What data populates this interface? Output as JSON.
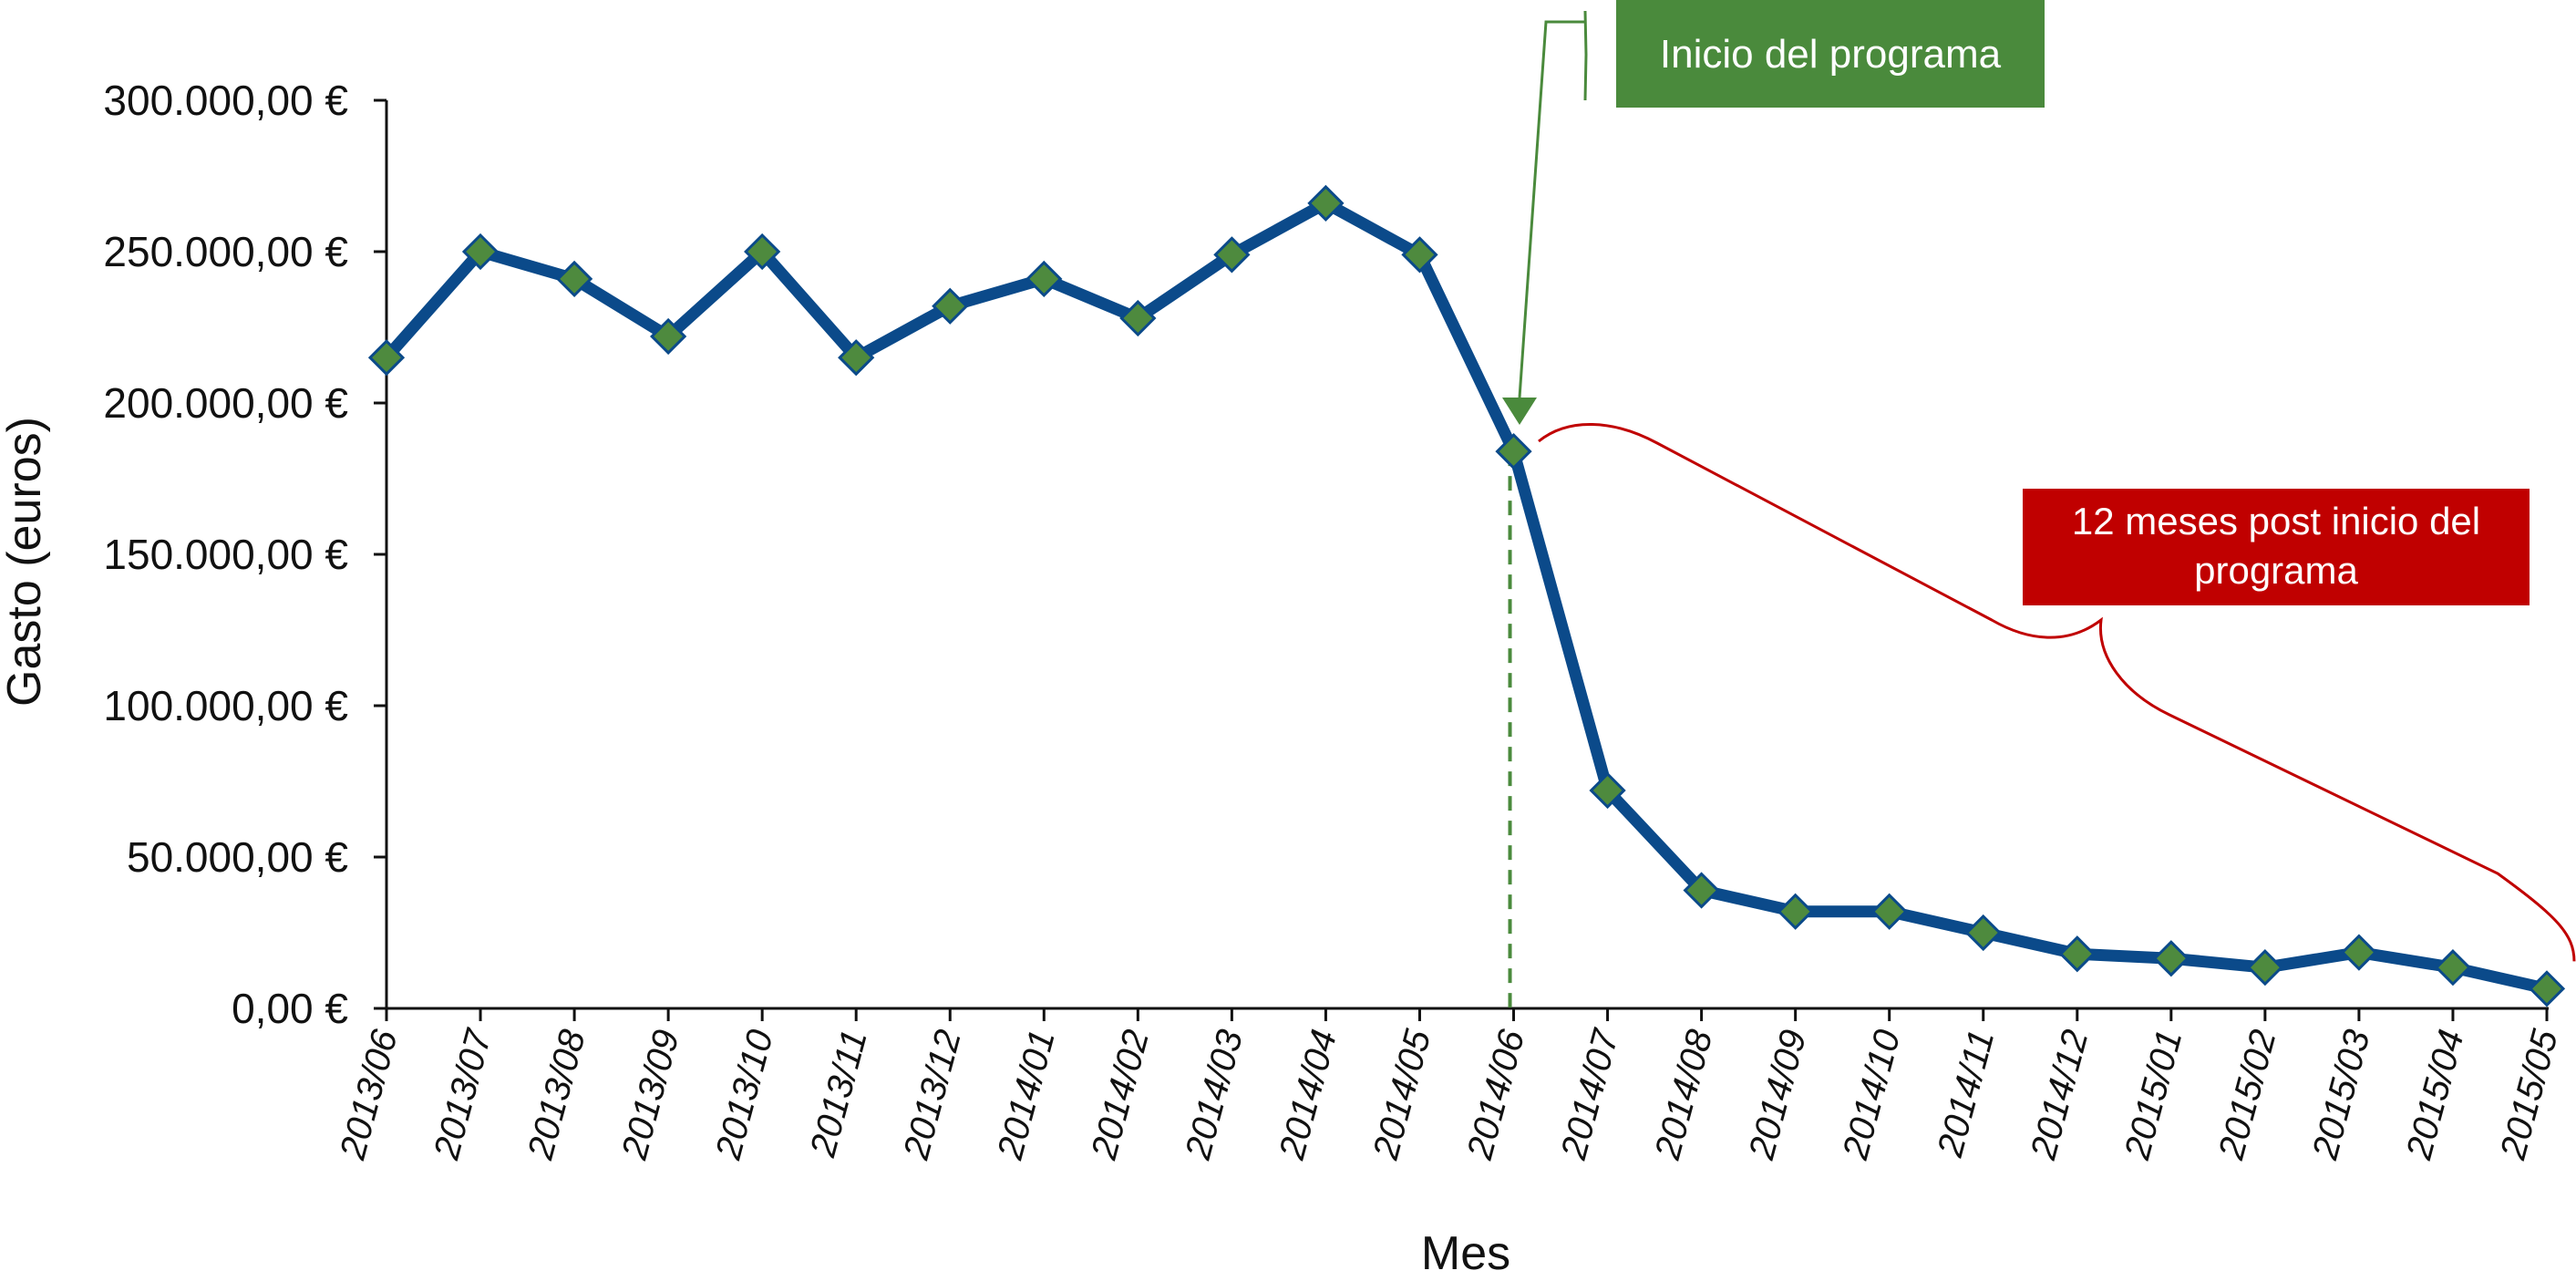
{
  "chart_data": {
    "type": "line",
    "title": "",
    "xlabel": "Mes",
    "ylabel": "Gasto (euros)",
    "ylim": [
      0,
      300000
    ],
    "y_ticks": [
      {
        "value": 0,
        "label": "0,00 €"
      },
      {
        "value": 50000,
        "label": "50.000,00 €"
      },
      {
        "value": 100000,
        "label": "100.000,00 €"
      },
      {
        "value": 150000,
        "label": "150.000,00 €"
      },
      {
        "value": 200000,
        "label": "200.000,00 €"
      },
      {
        "value": 250000,
        "label": "250.000,00 €"
      },
      {
        "value": 300000,
        "label": "300.000,00 €"
      }
    ],
    "categories": [
      "2013/06",
      "2013/07",
      "2013/08",
      "2013/09",
      "2013/10",
      "2013/11",
      "2013/12",
      "2014/01",
      "2014/02",
      "2014/03",
      "2014/04",
      "2014/05",
      "2014/06",
      "2014/07",
      "2014/08",
      "2014/09",
      "2014/10",
      "2014/11",
      "2014/12",
      "2015/01",
      "2015/02",
      "2015/03",
      "2015/04",
      "2015/05"
    ],
    "series": [
      {
        "values": [
          215000,
          250000,
          241000,
          222000,
          250000,
          215000,
          232000,
          241000,
          228000,
          249000,
          266000,
          249000,
          184000,
          72000,
          39000,
          32000,
          32000,
          25000,
          18000,
          16500,
          13500,
          18500,
          13500,
          6500
        ],
        "line_color": "#0b4a8a",
        "marker_color": "#4e8a3e",
        "marker": "diamond"
      }
    ],
    "grid": false,
    "annotations": [
      {
        "text": "Inicio del programa",
        "category": "2014/06",
        "color": "#4a8a3c",
        "style": "green-box-with-arrow"
      },
      {
        "text_lines": [
          "12 meses post inicio del",
          "programa"
        ],
        "from_category": "2014/06",
        "to_category": "2015/05",
        "color": "#c00000",
        "style": "red-box-with-brace"
      }
    ]
  }
}
